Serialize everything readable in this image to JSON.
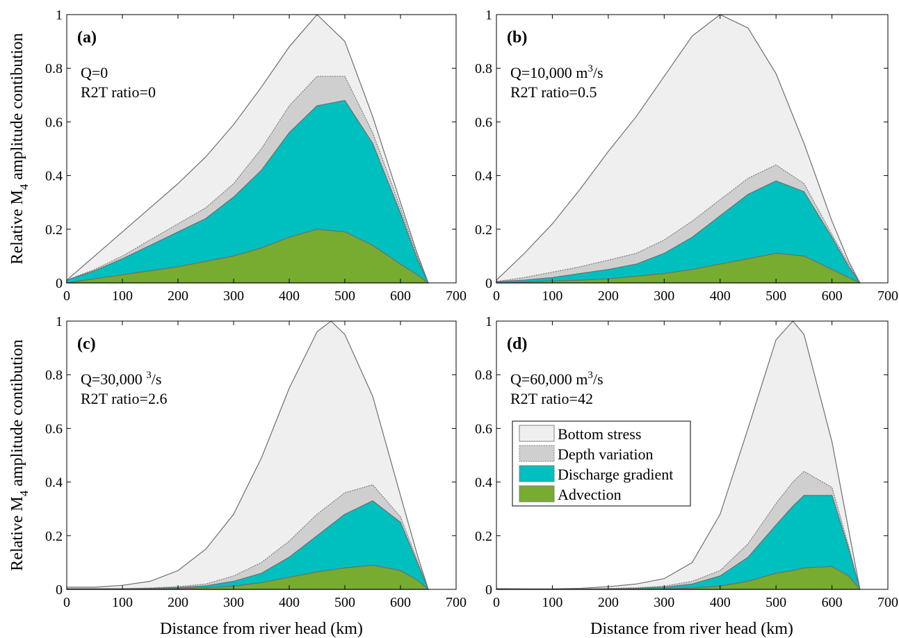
{
  "figure": {
    "ylabel_main": "Relative M",
    "ylabel_sub": "4",
    "ylabel_rest": " amplitude contibution",
    "xlabel": "Distance from river head (km)"
  },
  "legend": {
    "placement": "in panel (d), center-left",
    "entries": [
      {
        "label": "Bottom stress",
        "color": "#efefef"
      },
      {
        "label": "Depth variation",
        "color": "#cfcfcf"
      },
      {
        "label": "Discharge gradient",
        "color": "#00bfbf"
      },
      {
        "label": "Advection",
        "color": "#77ac30"
      }
    ]
  },
  "chart_data": [
    {
      "type": "area",
      "panel_label": "(a)",
      "annotation_lines": [
        "Q=0",
        "R2T ratio=0"
      ],
      "xlim": [
        0,
        700
      ],
      "ylim": [
        0,
        1
      ],
      "xticks": [
        0,
        100,
        200,
        300,
        400,
        500,
        600,
        700
      ],
      "yticks": [
        0,
        0.2,
        0.4,
        0.6,
        0.8,
        1
      ],
      "x": [
        0,
        50,
        100,
        150,
        200,
        250,
        300,
        350,
        400,
        450,
        500,
        550,
        600,
        630,
        650
      ],
      "series": [
        {
          "name": "Bottom stress",
          "values": [
            0.01,
            0.1,
            0.19,
            0.28,
            0.37,
            0.47,
            0.59,
            0.73,
            0.88,
            1.0,
            0.9,
            0.62,
            0.3,
            0.11,
            0.0
          ]
        },
        {
          "name": "Depth variation",
          "values": [
            0.01,
            0.05,
            0.1,
            0.16,
            0.22,
            0.28,
            0.37,
            0.5,
            0.66,
            0.77,
            0.77,
            0.56,
            0.28,
            0.1,
            0.0
          ]
        },
        {
          "name": "Discharge gradient",
          "values": [
            0.01,
            0.045,
            0.09,
            0.14,
            0.19,
            0.24,
            0.32,
            0.42,
            0.56,
            0.66,
            0.68,
            0.52,
            0.26,
            0.09,
            0.0
          ]
        },
        {
          "name": "Advection",
          "values": [
            0.0,
            0.015,
            0.03,
            0.045,
            0.06,
            0.08,
            0.1,
            0.13,
            0.17,
            0.2,
            0.19,
            0.14,
            0.07,
            0.03,
            0.0
          ]
        }
      ]
    },
    {
      "type": "area",
      "panel_label": "(b)",
      "annotation_lines": [
        "Q=10,000 m",
        "R2T ratio=0.5"
      ],
      "annotation_sup": "3",
      "annotation_after_sup": "/s",
      "xlim": [
        0,
        700
      ],
      "ylim": [
        0,
        1
      ],
      "xticks": [
        0,
        100,
        200,
        300,
        400,
        500,
        600,
        700
      ],
      "yticks": [
        0,
        0.2,
        0.4,
        0.6,
        0.8,
        1
      ],
      "x": [
        0,
        50,
        100,
        150,
        200,
        250,
        300,
        350,
        400,
        450,
        500,
        550,
        600,
        630,
        650
      ],
      "series": [
        {
          "name": "Bottom stress",
          "values": [
            0.01,
            0.11,
            0.22,
            0.35,
            0.49,
            0.62,
            0.77,
            0.92,
            1.0,
            0.95,
            0.78,
            0.52,
            0.23,
            0.08,
            0.0
          ]
        },
        {
          "name": "Depth variation",
          "values": [
            0.005,
            0.02,
            0.04,
            0.06,
            0.085,
            0.11,
            0.16,
            0.23,
            0.31,
            0.39,
            0.44,
            0.37,
            0.18,
            0.07,
            0.0
          ]
        },
        {
          "name": "Discharge gradient",
          "values": [
            0.005,
            0.01,
            0.02,
            0.035,
            0.05,
            0.07,
            0.11,
            0.17,
            0.25,
            0.33,
            0.38,
            0.34,
            0.17,
            0.06,
            0.0
          ]
        },
        {
          "name": "Advection",
          "values": [
            0.0,
            0.003,
            0.007,
            0.01,
            0.015,
            0.025,
            0.035,
            0.05,
            0.07,
            0.09,
            0.11,
            0.1,
            0.05,
            0.02,
            0.0
          ]
        }
      ]
    },
    {
      "type": "area",
      "panel_label": "(c)",
      "annotation_lines": [
        "Q=30,000 ",
        "R2T ratio=2.6"
      ],
      "annotation_sup": "3",
      "annotation_after_sup": "/s",
      "xlim": [
        0,
        700
      ],
      "ylim": [
        0,
        1
      ],
      "xticks": [
        0,
        100,
        200,
        300,
        400,
        500,
        600,
        700
      ],
      "yticks": [
        0,
        0.2,
        0.4,
        0.6,
        0.8,
        1
      ],
      "x": [
        0,
        50,
        100,
        150,
        200,
        250,
        300,
        350,
        400,
        450,
        475,
        500,
        550,
        600,
        630,
        650
      ],
      "series": [
        {
          "name": "Bottom stress",
          "values": [
            0.008,
            0.008,
            0.015,
            0.03,
            0.07,
            0.15,
            0.28,
            0.49,
            0.75,
            0.96,
            1.0,
            0.95,
            0.72,
            0.35,
            0.13,
            0.0
          ]
        },
        {
          "name": "Depth variation",
          "values": [
            0.003,
            0.003,
            0.003,
            0.005,
            0.01,
            0.02,
            0.05,
            0.1,
            0.18,
            0.28,
            0.32,
            0.36,
            0.39,
            0.27,
            0.11,
            0.0
          ]
        },
        {
          "name": "Discharge gradient",
          "values": [
            0.002,
            0.002,
            0.002,
            0.004,
            0.007,
            0.013,
            0.03,
            0.06,
            0.12,
            0.2,
            0.24,
            0.28,
            0.33,
            0.25,
            0.1,
            0.0
          ]
        },
        {
          "name": "Advection",
          "values": [
            0.0,
            0.0,
            0.0,
            0.001,
            0.003,
            0.006,
            0.012,
            0.025,
            0.045,
            0.065,
            0.072,
            0.08,
            0.09,
            0.07,
            0.035,
            0.0
          ]
        }
      ]
    },
    {
      "type": "area",
      "panel_label": "(d)",
      "annotation_lines": [
        "Q=60,000 m",
        "R2T ratio=42"
      ],
      "annotation_sup": "3",
      "annotation_after_sup": "/s",
      "xlim": [
        0,
        700
      ],
      "ylim": [
        0,
        1
      ],
      "xticks": [
        0,
        100,
        200,
        300,
        400,
        500,
        600,
        700
      ],
      "yticks": [
        0,
        0.2,
        0.4,
        0.6,
        0.8,
        1
      ],
      "x": [
        0,
        50,
        100,
        150,
        200,
        250,
        300,
        350,
        400,
        450,
        500,
        530,
        550,
        600,
        630,
        650
      ],
      "series": [
        {
          "name": "Bottom stress",
          "values": [
            0.003,
            0.002,
            0.002,
            0.004,
            0.01,
            0.02,
            0.04,
            0.1,
            0.28,
            0.6,
            0.93,
            1.0,
            0.95,
            0.55,
            0.22,
            0.0
          ]
        },
        {
          "name": "Depth variation",
          "values": [
            0.0,
            0.0,
            0.0,
            0.001,
            0.003,
            0.006,
            0.012,
            0.03,
            0.07,
            0.17,
            0.32,
            0.4,
            0.44,
            0.38,
            0.16,
            0.0
          ]
        },
        {
          "name": "Discharge gradient",
          "values": [
            0.0,
            0.0,
            0.0,
            0.001,
            0.002,
            0.004,
            0.008,
            0.02,
            0.05,
            0.12,
            0.24,
            0.31,
            0.35,
            0.35,
            0.15,
            0.0
          ]
        },
        {
          "name": "Advection",
          "values": [
            0.0,
            0.0,
            0.0,
            0.0,
            0.0,
            0.001,
            0.002,
            0.005,
            0.012,
            0.03,
            0.06,
            0.07,
            0.08,
            0.085,
            0.05,
            0.0
          ]
        }
      ]
    }
  ]
}
